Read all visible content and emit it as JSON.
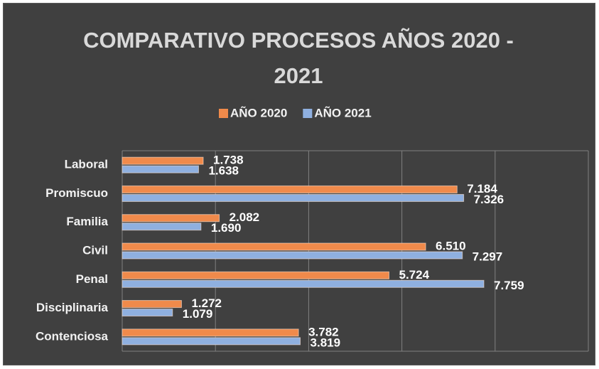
{
  "chart_data": {
    "type": "bar",
    "orientation": "horizontal",
    "title": "COMPARATIVO PROCESOS AÑOS 2020 - 2021",
    "categories": [
      "Laboral",
      "Promiscuo",
      "Familia",
      "Civil",
      "Penal",
      "Disciplinaria",
      "Contenciosa"
    ],
    "series": [
      {
        "name": "AÑO 2020",
        "color": "#f08a4b",
        "values": [
          1738,
          7184,
          2082,
          6510,
          5724,
          1272,
          3782
        ],
        "value_labels": [
          "1.738",
          "7.184",
          "2.082",
          "6.510",
          "5.724",
          "1.272",
          "3.782"
        ]
      },
      {
        "name": "AÑO 2021",
        "color": "#8fb0e0",
        "values": [
          1638,
          7326,
          1690,
          7297,
          7759,
          1079,
          3819
        ],
        "value_labels": [
          "1.638",
          "7.326",
          "1.690",
          "7.297",
          "7.759",
          "1.079",
          "3.819"
        ]
      }
    ],
    "xlim": [
      0,
      10000
    ],
    "xticks": [
      0,
      2000,
      4000,
      6000,
      8000,
      10000
    ],
    "grid": true,
    "legend": "top"
  }
}
